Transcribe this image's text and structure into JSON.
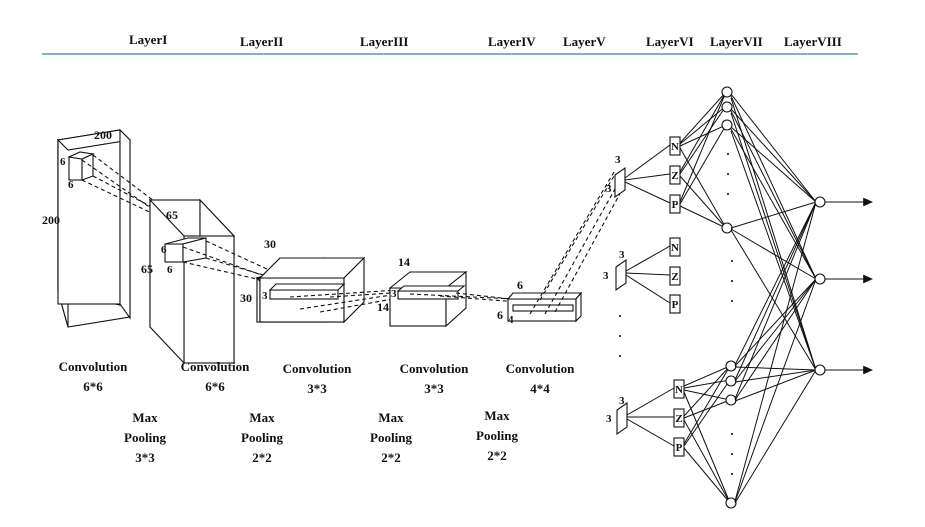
{
  "header": {
    "layers": [
      "LayerI",
      "LayerII",
      "LayerIII",
      "LayerIV",
      "LayerV",
      "LayerVI",
      "LayerVII",
      "LayerVIII"
    ],
    "rule_color": "#5b8fd6"
  },
  "stages": {
    "input": {
      "width": "200",
      "height": "200",
      "kernel_a": "6",
      "kernel_b": "6"
    },
    "pool1": {
      "width": "65",
      "height": "65",
      "kernel_a": "6",
      "kernel_b": "6"
    },
    "conv2": {
      "width": "30",
      "height": "30",
      "kernel_a": "3"
    },
    "conv3": {
      "width": "14",
      "height": "14",
      "kernel_a": "3"
    },
    "conv4": {
      "width": "6",
      "height": "6",
      "kernel_a": "4"
    }
  },
  "operations": [
    {
      "line1": "Convolution",
      "line2": "6*6"
    },
    {
      "line1": "Convolution",
      "line2": "6*6"
    },
    {
      "line1": "Convolution",
      "line2": "3*3"
    },
    {
      "line1": "Convolution",
      "line2": "3*3"
    },
    {
      "line1": "Convolution",
      "line2": "4*4"
    }
  ],
  "pooling": [
    {
      "line1": "Max",
      "line2": "Pooling",
      "line3": "3*3"
    },
    {
      "line1": "Max",
      "line2": "Pooling",
      "line3": "2*2"
    },
    {
      "line1": "Max",
      "line2": "Pooling",
      "line3": "2*2"
    },
    {
      "line1": "Max",
      "line2": "Pooling",
      "line3": "2*2"
    }
  ],
  "fuzzy_inputs": [
    {
      "a": "3",
      "b": "3"
    },
    {
      "a": "3",
      "b": "3"
    },
    {
      "a": "3",
      "b": "3"
    }
  ],
  "membership_labels": [
    "N",
    "Z",
    "P"
  ],
  "ellipsis": "·"
}
